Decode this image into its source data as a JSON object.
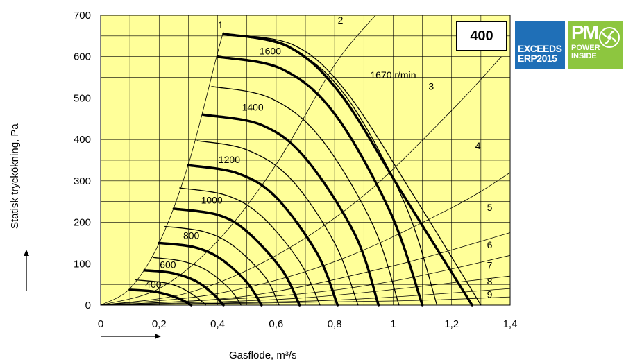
{
  "size_label": "400",
  "badges": {
    "erp": {
      "line1": "EXCEEDS",
      "line2": "ERP2015",
      "color": "#1f6fb7"
    },
    "pm": {
      "big": "PM",
      "line1": "POWER",
      "line2": "INSIDE",
      "color": "#8dc63f"
    }
  },
  "colors": {
    "plot_background": "#ffff99",
    "grid": "#000000",
    "curve": "#000000"
  },
  "chart_data": {
    "type": "line",
    "xlabel": "Gasflöde, m³/s",
    "ylabel": "Statisk tryckökning, Pa",
    "xlim": [
      0,
      1.4
    ],
    "ylim": [
      0,
      700
    ],
    "x_ticks": [
      "0",
      "0,2",
      "0,4",
      "0,6",
      "0,8",
      "1",
      "1,2",
      "1,4"
    ],
    "y_ticks": [
      "0",
      "100",
      "200",
      "300",
      "400",
      "500",
      "600",
      "700"
    ],
    "grid": true,
    "annotation": "1670 r/min",
    "speed_curves": [
      {
        "name": "400",
        "bold": true,
        "points": [
          [
            0.1,
            37
          ],
          [
            0.18,
            33
          ],
          [
            0.24,
            23
          ],
          [
            0.28,
            12
          ],
          [
            0.31,
            0
          ]
        ]
      },
      {
        "name": "",
        "bold": false,
        "points": [
          [
            0.12,
            61
          ],
          [
            0.22,
            54
          ],
          [
            0.28,
            40
          ],
          [
            0.33,
            18
          ],
          [
            0.36,
            0
          ]
        ]
      },
      {
        "name": "600",
        "bold": true,
        "points": [
          [
            0.15,
            84
          ],
          [
            0.24,
            78
          ],
          [
            0.32,
            60
          ],
          [
            0.38,
            30
          ],
          [
            0.42,
            0
          ]
        ]
      },
      {
        "name": "",
        "bold": false,
        "points": [
          [
            0.18,
            115
          ],
          [
            0.28,
            106
          ],
          [
            0.36,
            85
          ],
          [
            0.44,
            40
          ],
          [
            0.48,
            0
          ]
        ]
      },
      {
        "name": "800",
        "bold": true,
        "points": [
          [
            0.2,
            150
          ],
          [
            0.32,
            140
          ],
          [
            0.41,
            112
          ],
          [
            0.5,
            55
          ],
          [
            0.55,
            0
          ]
        ]
      },
      {
        "name": "",
        "bold": false,
        "points": [
          [
            0.22,
            190
          ],
          [
            0.35,
            178
          ],
          [
            0.45,
            145
          ],
          [
            0.56,
            70
          ],
          [
            0.61,
            0
          ]
        ]
      },
      {
        "name": "1000",
        "bold": true,
        "points": [
          [
            0.25,
            233
          ],
          [
            0.4,
            218
          ],
          [
            0.5,
            178
          ],
          [
            0.62,
            85
          ],
          [
            0.68,
            0
          ]
        ]
      },
      {
        "name": "",
        "bold": false,
        "points": [
          [
            0.27,
            283
          ],
          [
            0.43,
            265
          ],
          [
            0.55,
            215
          ],
          [
            0.68,
            105
          ],
          [
            0.75,
            0
          ]
        ]
      },
      {
        "name": "1200",
        "bold": true,
        "points": [
          [
            0.3,
            338
          ],
          [
            0.47,
            318
          ],
          [
            0.6,
            260
          ],
          [
            0.74,
            125
          ],
          [
            0.81,
            0
          ]
        ]
      },
      {
        "name": "",
        "bold": false,
        "points": [
          [
            0.33,
            397
          ],
          [
            0.5,
            375
          ],
          [
            0.65,
            305
          ],
          [
            0.8,
            150
          ],
          [
            0.88,
            0
          ]
        ]
      },
      {
        "name": "1400",
        "bold": true,
        "points": [
          [
            0.35,
            460
          ],
          [
            0.55,
            435
          ],
          [
            0.7,
            355
          ],
          [
            0.87,
            170
          ],
          [
            0.95,
            0
          ]
        ]
      },
      {
        "name": "",
        "bold": false,
        "points": [
          [
            0.38,
            528
          ],
          [
            0.58,
            500
          ],
          [
            0.75,
            405
          ],
          [
            0.93,
            195
          ],
          [
            1.02,
            0
          ]
        ]
      },
      {
        "name": "1600",
        "bold": true,
        "points": [
          [
            0.4,
            600
          ],
          [
            0.62,
            570
          ],
          [
            0.8,
            462
          ],
          [
            0.99,
            225
          ],
          [
            1.1,
            0
          ]
        ]
      },
      {
        "name": "",
        "bold": false,
        "points": [
          [
            0.42,
            655
          ],
          [
            0.65,
            620
          ],
          [
            0.84,
            503
          ],
          [
            1.04,
            245
          ],
          [
            1.15,
            0
          ]
        ]
      },
      {
        "name": "1670 r/min",
        "bold": true,
        "points": [
          [
            0.42,
            655
          ],
          [
            0.64,
            625
          ],
          [
            0.82,
            510
          ],
          [
            1.04,
            260
          ],
          [
            1.27,
            0
          ]
        ]
      },
      {
        "name": "",
        "bold": false,
        "points": [
          [
            0.42,
            655
          ],
          [
            0.66,
            628
          ],
          [
            0.84,
            515
          ],
          [
            1.07,
            265
          ],
          [
            1.3,
            0
          ]
        ]
      }
    ],
    "system_lines": [
      {
        "name": "1",
        "points": [
          [
            0,
            0
          ],
          [
            0.1,
            40
          ],
          [
            0.2,
            150
          ],
          [
            0.3,
            340
          ],
          [
            0.4,
            610
          ],
          [
            0.42,
            660
          ]
        ]
      },
      {
        "name": "2",
        "points": [
          [
            0,
            0
          ],
          [
            0.2,
            40
          ],
          [
            0.4,
            155
          ],
          [
            0.6,
            340
          ],
          [
            0.8,
            580
          ],
          [
            0.94,
            700
          ]
        ]
      },
      {
        "name": "3",
        "points": [
          [
            0,
            0
          ],
          [
            0.3,
            30
          ],
          [
            0.6,
            120
          ],
          [
            0.9,
            265
          ],
          [
            1.2,
            470
          ],
          [
            1.37,
            600
          ]
        ]
      },
      {
        "name": "4",
        "points": [
          [
            0,
            0
          ],
          [
            0.4,
            28
          ],
          [
            0.8,
            105
          ],
          [
            1.2,
            235
          ],
          [
            1.4,
            320
          ]
        ]
      },
      {
        "name": "5",
        "points": [
          [
            0,
            0
          ],
          [
            0.5,
            22
          ],
          [
            1.0,
            95
          ],
          [
            1.4,
            175
          ]
        ]
      },
      {
        "name": "6",
        "points": [
          [
            0,
            0
          ],
          [
            0.6,
            22
          ],
          [
            1.0,
            58
          ],
          [
            1.4,
            120
          ]
        ]
      },
      {
        "name": "7",
        "points": [
          [
            0,
            0
          ],
          [
            0.7,
            18
          ],
          [
            1.4,
            70
          ]
        ]
      },
      {
        "name": "8",
        "points": [
          [
            0,
            0
          ],
          [
            0.8,
            12
          ],
          [
            1.4,
            40
          ]
        ]
      },
      {
        "name": "9",
        "points": [
          [
            0,
            0
          ],
          [
            1.0,
            10
          ],
          [
            1.4,
            20
          ]
        ]
      }
    ]
  }
}
